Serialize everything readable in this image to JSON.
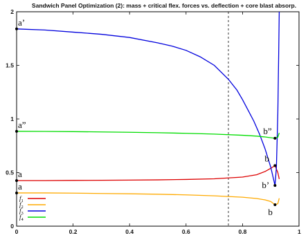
{
  "chart_data": {
    "type": "line",
    "title": "Sandwich Panel Optimization (2): mass + critical flex. forces vs. deflection + core blast absorp.",
    "xlabel": "",
    "ylabel": "",
    "xlim": [
      0,
      1
    ],
    "ylim": [
      0,
      2
    ],
    "xticks": [
      "0",
      "0.2",
      "0.4",
      "0.6",
      "0.8",
      "1"
    ],
    "yticks": [
      "0",
      "0.5",
      "1",
      "1.5",
      "2"
    ],
    "grid": false,
    "legend_position": "bottom-left",
    "vertical_line": {
      "x": 0.75,
      "style": "dashed"
    },
    "series": [
      {
        "name": "f1",
        "color": "#dd0000",
        "x": [
          0,
          0.1,
          0.2,
          0.3,
          0.4,
          0.5,
          0.6,
          0.7,
          0.8,
          0.85,
          0.88,
          0.9,
          0.915,
          0.925,
          0.93
        ],
        "y": [
          0.425,
          0.425,
          0.427,
          0.428,
          0.43,
          0.432,
          0.436,
          0.442,
          0.458,
          0.48,
          0.51,
          0.54,
          0.565,
          0.5,
          0.44
        ]
      },
      {
        "name": "f2",
        "color": "#ffaa00",
        "x": [
          0,
          0.1,
          0.2,
          0.3,
          0.4,
          0.5,
          0.6,
          0.7,
          0.8,
          0.85,
          0.88,
          0.9,
          0.915,
          0.925,
          0.93
        ],
        "y": [
          0.31,
          0.31,
          0.308,
          0.305,
          0.302,
          0.298,
          0.292,
          0.283,
          0.27,
          0.258,
          0.245,
          0.23,
          0.2,
          0.21,
          0.26
        ]
      },
      {
        "name": "f3",
        "color": "#0000dd",
        "x": [
          0,
          0.1,
          0.2,
          0.3,
          0.4,
          0.5,
          0.55,
          0.6,
          0.65,
          0.7,
          0.75,
          0.78,
          0.8,
          0.82,
          0.84,
          0.86,
          0.88,
          0.9,
          0.915,
          0.92,
          0.925,
          0.928,
          0.93
        ],
        "y": [
          1.84,
          1.83,
          1.81,
          1.79,
          1.76,
          1.71,
          1.68,
          1.64,
          1.58,
          1.5,
          1.37,
          1.27,
          1.18,
          1.08,
          0.98,
          0.86,
          0.72,
          0.55,
          0.38,
          0.55,
          1.05,
          1.6,
          2.0
        ]
      },
      {
        "name": "f4",
        "color": "#00dd00",
        "x": [
          0,
          0.1,
          0.2,
          0.3,
          0.4,
          0.5,
          0.6,
          0.7,
          0.8,
          0.85,
          0.88,
          0.9,
          0.915,
          0.925,
          0.93
        ],
        "y": [
          0.885,
          0.884,
          0.882,
          0.879,
          0.876,
          0.872,
          0.866,
          0.859,
          0.848,
          0.84,
          0.832,
          0.825,
          0.82,
          0.83,
          0.87
        ]
      }
    ],
    "annotations": [
      {
        "text": "a’",
        "x": 0,
        "y": 1.84
      },
      {
        "text": "a”",
        "x": 0,
        "y": 0.885
      },
      {
        "text": "a",
        "x": 0,
        "y": 0.425
      },
      {
        "text": "a",
        "x": 0,
        "y": 0.31
      },
      {
        "text": "b”",
        "x": 0.915,
        "y": 0.82
      },
      {
        "text": "b",
        "x": 0.915,
        "y": 0.565
      },
      {
        "text": "b’",
        "x": 0.915,
        "y": 0.38
      },
      {
        "text": "b",
        "x": 0.915,
        "y": 0.2
      }
    ]
  }
}
